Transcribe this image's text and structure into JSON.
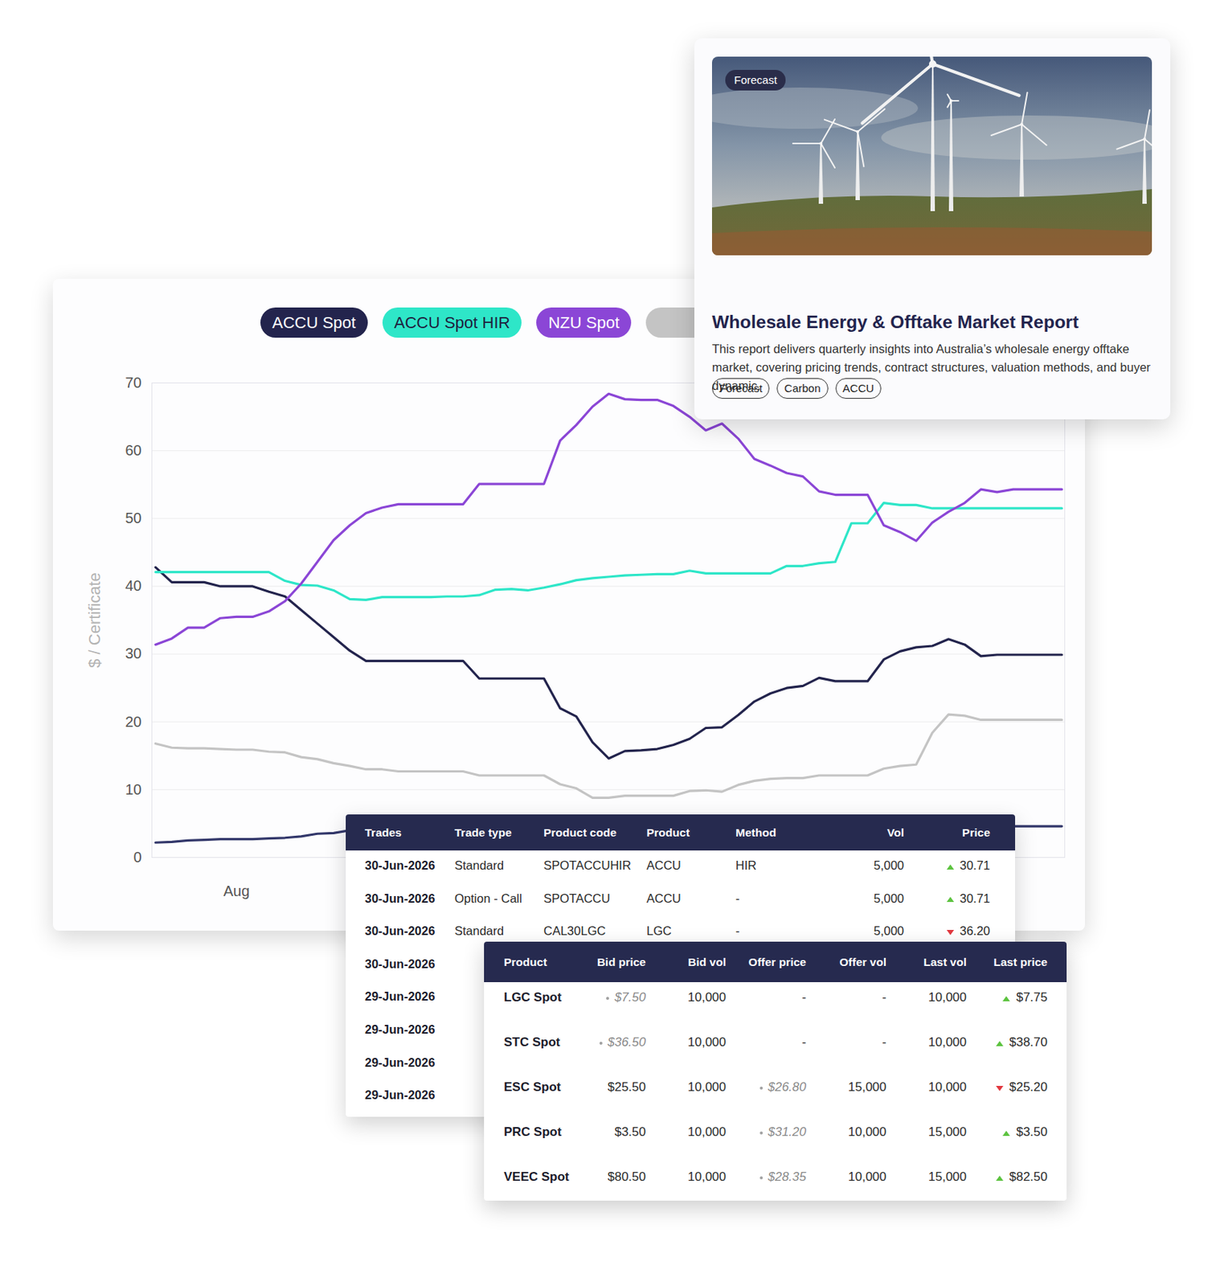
{
  "chart_data": {
    "type": "line",
    "ylabel": "$ / Certificate",
    "categories": [
      null,
      null,
      null,
      null,
      null,
      "Aug",
      null,
      null,
      null,
      null,
      null,
      null,
      null,
      null,
      null,
      null,
      null,
      null,
      null,
      null,
      null,
      null,
      null,
      null,
      null,
      null,
      null,
      null,
      null,
      null,
      null,
      null,
      null,
      null,
      null,
      null,
      null,
      null,
      null,
      null,
      null,
      null,
      null,
      null,
      null,
      null,
      null,
      null,
      null,
      null,
      null,
      null,
      null,
      null,
      null,
      null,
      null
    ],
    "series": [
      {
        "name": "ACCU Spot",
        "color": "#23244d",
        "values": [
          42.8,
          40.6,
          40.6,
          40.6,
          40.0,
          40.0,
          40.0,
          39.2,
          38.5,
          36.5,
          34.5,
          32.5,
          30.5,
          29.0,
          29.0,
          29.0,
          29.0,
          29.0,
          29.0,
          29.0,
          26.4,
          26.4,
          26.4,
          26.4,
          26.4,
          22.0,
          20.8,
          17.0,
          14.6,
          15.7,
          15.8,
          16.0,
          16.6,
          17.5,
          19.1,
          19.2,
          21.0,
          23.0,
          24.2,
          25.0,
          25.3,
          26.5,
          26.0,
          26.0,
          26.0,
          29.2,
          30.4,
          31.0,
          31.2,
          32.2,
          31.4,
          29.7,
          29.9,
          29.9,
          29.9,
          29.9,
          29.9
        ]
      },
      {
        "name": "ACCU Spot HIR",
        "color": "#2ee6c8",
        "values": [
          42.1,
          42.1,
          42.1,
          42.1,
          42.1,
          42.1,
          42.1,
          42.1,
          40.8,
          40.2,
          40.1,
          39.4,
          38.1,
          38.0,
          38.4,
          38.4,
          38.4,
          38.4,
          38.5,
          38.5,
          38.7,
          39.5,
          39.6,
          39.4,
          39.8,
          40.3,
          40.9,
          41.2,
          41.4,
          41.6,
          41.7,
          41.8,
          41.8,
          42.3,
          41.9,
          41.9,
          41.9,
          41.9,
          41.9,
          43.0,
          43.0,
          43.4,
          43.6,
          49.3,
          49.3,
          52.3,
          52.0,
          52.0,
          51.5,
          51.5,
          51.5,
          51.5,
          51.5,
          51.5,
          51.5,
          51.5,
          51.5
        ]
      },
      {
        "name": "NZU Spot",
        "color": "#8b46d6",
        "values": [
          31.4,
          32.3,
          33.9,
          33.9,
          35.3,
          35.5,
          35.5,
          36.3,
          37.8,
          40.4,
          43.6,
          46.8,
          49.0,
          50.8,
          51.6,
          52.1,
          52.1,
          52.1,
          52.1,
          52.1,
          55.1,
          55.1,
          55.1,
          55.1,
          55.1,
          61.5,
          63.8,
          66.5,
          68.4,
          67.6,
          67.5,
          67.5,
          66.6,
          65.0,
          63.0,
          64.0,
          61.8,
          58.8,
          57.8,
          56.7,
          56.2,
          54.0,
          53.5,
          53.5,
          53.5,
          49.0,
          48.0,
          46.7,
          49.4,
          51.0,
          52.3,
          54.3,
          53.9,
          54.3,
          54.3,
          54.3,
          54.3
        ]
      },
      {
        "color": "#c4c4c4",
        "values": [
          16.8,
          16.2,
          16.1,
          16.1,
          16.0,
          15.9,
          15.9,
          15.6,
          15.5,
          14.8,
          14.5,
          13.9,
          13.5,
          13.0,
          13.0,
          12.7,
          12.7,
          12.7,
          12.7,
          12.7,
          12.1,
          12.1,
          12.1,
          12.1,
          12.1,
          10.8,
          10.2,
          8.8,
          8.8,
          9.1,
          9.1,
          9.1,
          9.1,
          9.8,
          9.9,
          9.7,
          10.7,
          11.3,
          11.6,
          11.7,
          11.7,
          12.1,
          12.1,
          12.1,
          12.1,
          13.1,
          13.5,
          13.7,
          18.4,
          21.1,
          20.9,
          20.3,
          20.3,
          20.3,
          20.3,
          20.3,
          20.3
        ]
      },
      {
        "color": "#33386b",
        "values": [
          2.2,
          2.3,
          2.5,
          2.6,
          2.7,
          2.7,
          2.7,
          2.8,
          2.9,
          3.1,
          3.5,
          3.6,
          4.0,
          null,
          null,
          null,
          null,
          null,
          null,
          null,
          null,
          null,
          null,
          null,
          null,
          null,
          null,
          null,
          null,
          null,
          null,
          null,
          null,
          null,
          null,
          null,
          null,
          null,
          null,
          null,
          null,
          null,
          null,
          null,
          null,
          null,
          null,
          null,
          null,
          null,
          null,
          null,
          null,
          4.6,
          4.6,
          4.6,
          4.6
        ]
      }
    ],
    "ylim": [
      0,
      70
    ],
    "yticks": [
      0,
      10,
      20,
      30,
      40,
      50,
      60,
      70
    ],
    "grid": true,
    "legend": "top"
  },
  "report": {
    "badge": "Forecast",
    "title": "Wholesale Energy & Offtake Market Report",
    "description": "This report delivers quarterly insights into Australia’s wholesale energy offtake market, covering pricing trends, contract structures, valuation methods, and buyer dynamic.",
    "tags": [
      "Forecast",
      "Carbon",
      "ACCU"
    ]
  },
  "trades_table": {
    "columns": [
      "Trades",
      "Trade type",
      "Product code",
      "Product",
      "Method",
      "Vol",
      "Price"
    ],
    "rows": [
      {
        "cells": [
          "30-Jun-2026",
          "Standard",
          "SPOTACCUHIR",
          "ACCU",
          "HIR",
          "5,000",
          "30.71"
        ],
        "direction": "up"
      },
      {
        "cells": [
          "30-Jun-2026",
          "Option - Call",
          "SPOTACCU",
          "ACCU",
          "-",
          "5,000",
          "30.71"
        ],
        "direction": "up"
      },
      {
        "cells": [
          "30-Jun-2026",
          "Standard",
          "CAL30LGC",
          "LGC",
          "-",
          "5,000",
          "36.20"
        ],
        "direction": "down"
      },
      {
        "cells": [
          "30-Jun-2026"
        ]
      },
      {
        "cells": [
          "29-Jun-2026"
        ]
      },
      {
        "cells": [
          "29-Jun-2026"
        ]
      },
      {
        "cells": [
          "29-Jun-2026"
        ]
      },
      {
        "cells": [
          "29-Jun-2026"
        ]
      }
    ]
  },
  "quotes_table": {
    "columns": [
      "Product",
      "Bid price",
      "Bid vol",
      "Offer price",
      "Offer vol",
      "Last vol",
      "Last price"
    ],
    "rows": [
      {
        "cells": [
          "LGC Spot",
          {
            "text": "$7.50",
            "indicative": true
          },
          "10,000",
          "-",
          "-",
          "10,000",
          "$7.75"
        ],
        "direction": "up"
      },
      {
        "cells": [
          "STC Spot",
          {
            "text": "$36.50",
            "indicative": true
          },
          "10,000",
          "-",
          "-",
          "10,000",
          "$38.70"
        ],
        "direction": "up"
      },
      {
        "cells": [
          "ESC Spot",
          "$25.50",
          "10,000",
          {
            "text": "$26.80",
            "indicative": true
          },
          "15,000",
          "10,000",
          "$25.20"
        ],
        "direction": "down"
      },
      {
        "cells": [
          "PRC Spot",
          "$3.50",
          "10,000",
          {
            "text": "$31.20",
            "indicative": true
          },
          "10,000",
          "15,000",
          "$3.50"
        ],
        "direction": "up"
      },
      {
        "cells": [
          "VEEC Spot",
          "$80.50",
          "10,000",
          {
            "text": "$28.35",
            "indicative": true
          },
          "10,000",
          "15,000",
          "$82.50"
        ],
        "direction": "up"
      }
    ]
  }
}
